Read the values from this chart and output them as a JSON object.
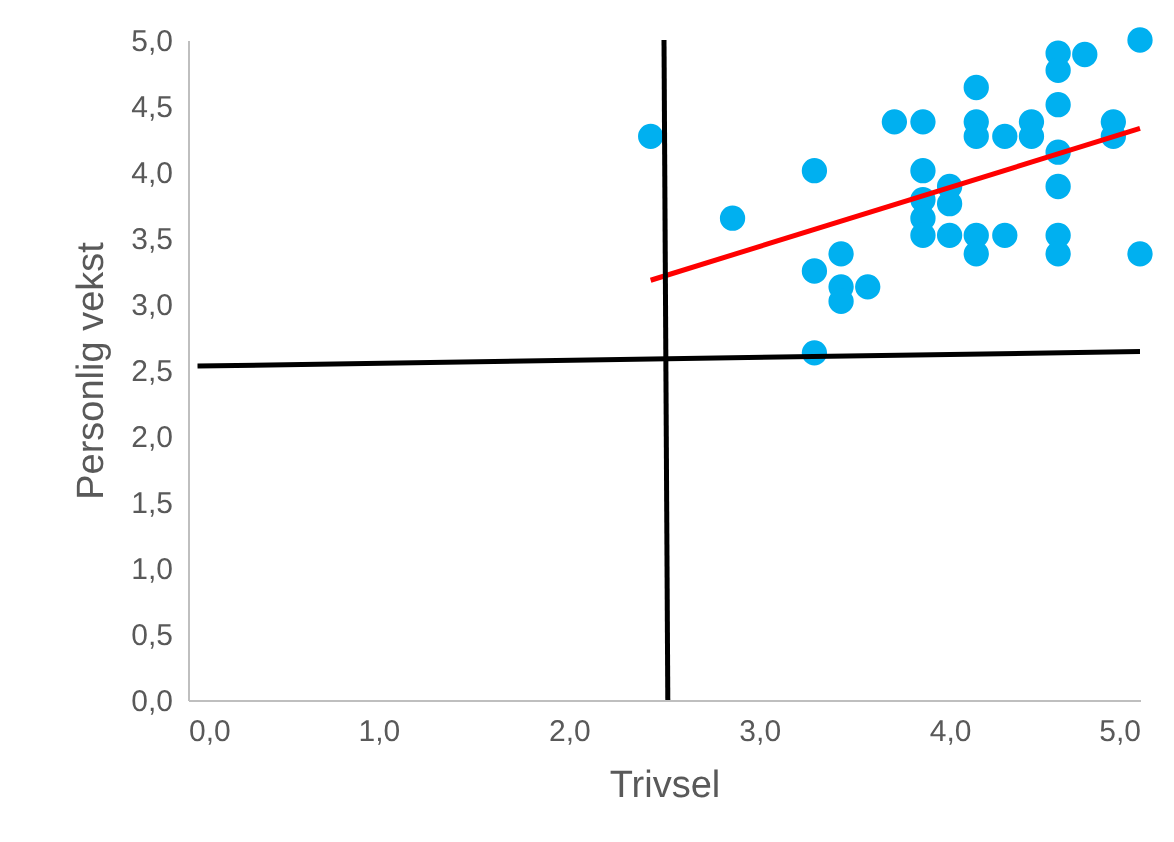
{
  "chart_data": {
    "type": "scatter",
    "xlabel": "Trivsel",
    "ylabel": "Personlig vekst",
    "xlim": [
      0,
      5
    ],
    "ylim": [
      0,
      5
    ],
    "xticks": [
      {
        "value": 0,
        "label": "0,0"
      },
      {
        "value": 1,
        "label": "1,0"
      },
      {
        "value": 2,
        "label": "2,0"
      },
      {
        "value": 3,
        "label": "3,0"
      },
      {
        "value": 4,
        "label": "4,0"
      },
      {
        "value": 5,
        "label": "5,0"
      }
    ],
    "yticks": [
      {
        "value": 0,
        "label": "0,0"
      },
      {
        "value": 0.5,
        "label": "0,5"
      },
      {
        "value": 1,
        "label": "1,0"
      },
      {
        "value": 1.5,
        "label": "1,5"
      },
      {
        "value": 2,
        "label": "2,0"
      },
      {
        "value": 2.5,
        "label": "2,5"
      },
      {
        "value": 3,
        "label": "3,0"
      },
      {
        "value": 3.5,
        "label": "3,5"
      },
      {
        "value": 4,
        "label": "4,0"
      },
      {
        "value": 4.5,
        "label": "4,5"
      },
      {
        "value": 5,
        "label": "5,0"
      }
    ],
    "grid": false,
    "legend": false,
    "series": [
      {
        "type": "scatter",
        "marker": "circle",
        "color": "#00b0f0",
        "x": [
          2.43,
          2.86,
          3.29,
          3.29,
          3.29,
          3.43,
          3.43,
          3.43,
          3.57,
          3.71,
          3.86,
          3.86,
          3.86,
          3.86,
          3.86,
          4.0,
          4.0,
          4.0,
          4.14,
          4.14,
          4.14,
          4.14,
          4.14,
          4.29,
          4.29,
          4.43,
          4.43,
          4.57,
          4.57,
          4.57,
          4.57,
          4.57,
          4.57,
          4.57,
          4.71,
          4.86,
          4.86,
          5.0,
          5.0
        ],
        "values": [
          4.27,
          3.65,
          4.01,
          3.25,
          2.63,
          3.38,
          3.13,
          3.02,
          3.13,
          4.38,
          4.38,
          4.01,
          3.79,
          3.65,
          3.52,
          3.89,
          3.76,
          3.52,
          4.64,
          4.38,
          4.27,
          3.52,
          3.38,
          4.27,
          3.52,
          4.38,
          4.27,
          4.9,
          4.77,
          4.51,
          4.15,
          3.89,
          3.52,
          3.38,
          4.89,
          4.38,
          4.27,
          5.0,
          3.38
        ]
      },
      {
        "type": "line",
        "marker": "none",
        "color": "#ff0000",
        "x": [
          2.43,
          5.0
        ],
        "values": [
          3.18,
          4.33
        ]
      },
      {
        "type": "line",
        "marker": "none",
        "color": "#000000",
        "x": [
          0.05,
          5.0
        ],
        "values": [
          2.53,
          2.64
        ]
      },
      {
        "type": "line",
        "marker": "none",
        "color": "#000000",
        "x": [
          2.52,
          2.5
        ],
        "values": [
          0,
          5.0
        ]
      }
    ]
  }
}
